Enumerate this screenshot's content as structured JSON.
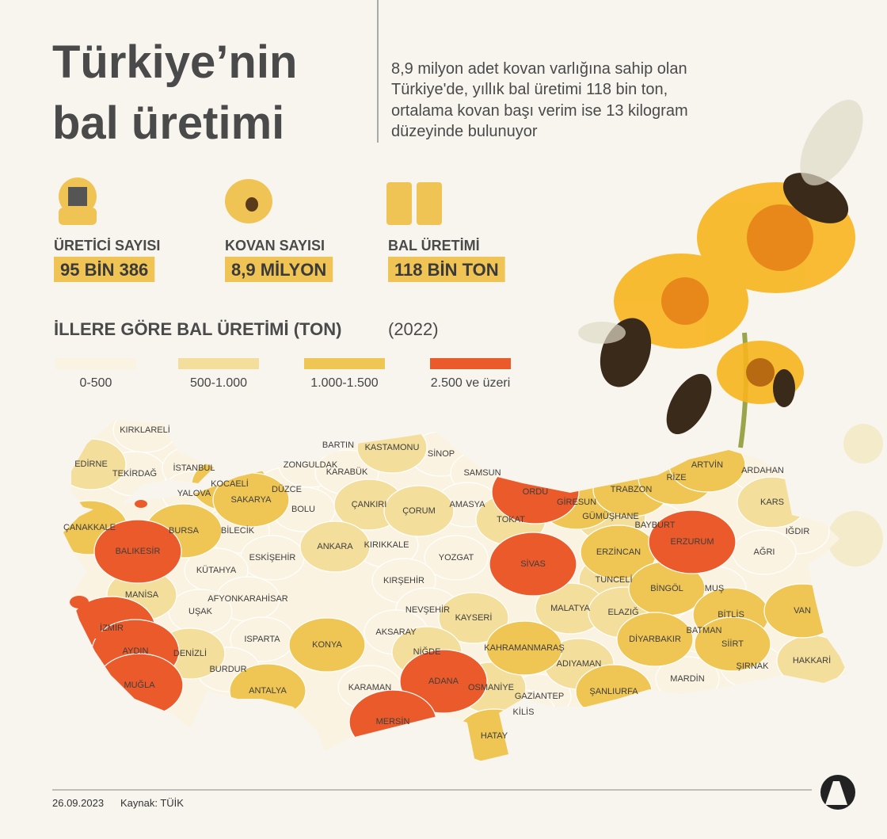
{
  "header": {
    "title_lines": [
      "Türkiye’nin",
      "bal üretimi"
    ],
    "description_lines": [
      "8,9 milyon adet kovan varlığına sahip olan",
      "Türkiye'de, yıllık bal üretimi 118 bin ton,",
      "ortalama kovan başı verim ise 13 kilogram",
      "düzeyinde bulunuyor"
    ]
  },
  "stats": [
    {
      "label": "ÜRETİCİ SAYISI",
      "value": "95 BİN 386"
    },
    {
      "label": "KOVAN SAYISI",
      "value": "8,9 MİLYON"
    },
    {
      "label": "BAL ÜRETİMİ",
      "value": "118 BİN TON"
    }
  ],
  "map": {
    "title": "İLLERE GÖRE BAL ÜRETİMİ (TON)",
    "year": "(2022)",
    "legend": [
      {
        "label": "0-500",
        "color": "#fbf3e1"
      },
      {
        "label": "500-1.000",
        "color": "#f4de9c"
      },
      {
        "label": "1.000-1.500",
        "color": "#efc553"
      },
      {
        "label": "2.500 ve üzeri",
        "color": "#ea5a2b"
      }
    ],
    "provinces": [
      {
        "name": "KIRKLARELİ",
        "level": 0
      },
      {
        "name": "EDİRNE",
        "level": 1
      },
      {
        "name": "TEKİRDAĞ",
        "level": 0
      },
      {
        "name": "İSTANBUL",
        "level": 0
      },
      {
        "name": "YALOVA",
        "level": 0
      },
      {
        "name": "KOCAELİ",
        "level": 2
      },
      {
        "name": "SAKARYA",
        "level": 2
      },
      {
        "name": "DÜZCE",
        "level": 0
      },
      {
        "name": "ZONGULDAK",
        "level": 0
      },
      {
        "name": "BARTIN",
        "level": 0
      },
      {
        "name": "KARABÜK",
        "level": 0
      },
      {
        "name": "KASTAMONU",
        "level": 1
      },
      {
        "name": "SİNOP",
        "level": 0
      },
      {
        "name": "SAMSUN",
        "level": 0
      },
      {
        "name": "ÇANAKKALE",
        "level": 2
      },
      {
        "name": "BURSA",
        "level": 2
      },
      {
        "name": "BİLECİK",
        "level": 0
      },
      {
        "name": "BOLU",
        "level": 0
      },
      {
        "name": "ÇANKIRI",
        "level": 1
      },
      {
        "name": "ÇORUM",
        "level": 1
      },
      {
        "name": "AMASYA",
        "level": 0
      },
      {
        "name": "TOKAT",
        "level": 1
      },
      {
        "name": "ORDU",
        "level": 3
      },
      {
        "name": "GİRESUN",
        "level": 2
      },
      {
        "name": "TRABZON",
        "level": 2
      },
      {
        "name": "RİZE",
        "level": 2
      },
      {
        "name": "ARTVİN",
        "level": 2
      },
      {
        "name": "ARDAHAN",
        "level": 0
      },
      {
        "name": "KARS",
        "level": 1
      },
      {
        "name": "GÜMÜŞHANE",
        "level": 1
      },
      {
        "name": "BAYBURT",
        "level": 0
      },
      {
        "name": "ERZURUM",
        "level": 3
      },
      {
        "name": "IĞDIR",
        "level": 0
      },
      {
        "name": "AĞRI",
        "level": 0
      },
      {
        "name": "BALIKESİR",
        "level": 3
      },
      {
        "name": "ESKİŞEHİR",
        "level": 0
      },
      {
        "name": "ANKARA",
        "level": 1
      },
      {
        "name": "KIRIKKALE",
        "level": 0
      },
      {
        "name": "YOZGAT",
        "level": 0
      },
      {
        "name": "SİVAS",
        "level": 3
      },
      {
        "name": "ERZİNCAN",
        "level": 2
      },
      {
        "name": "KÜTAHYA",
        "level": 0
      },
      {
        "name": "MANİSA",
        "level": 1
      },
      {
        "name": "KIRŞEHİR",
        "level": 0
      },
      {
        "name": "TUNCELİ",
        "level": 1
      },
      {
        "name": "BİNGÖL",
        "level": 2
      },
      {
        "name": "MUŞ",
        "level": 0
      },
      {
        "name": "AFYONKARAHİSAR",
        "level": 0
      },
      {
        "name": "UŞAK",
        "level": 0
      },
      {
        "name": "NEVŞEHİR",
        "level": 0
      },
      {
        "name": "KAYSERİ",
        "level": 1
      },
      {
        "name": "MALATYA",
        "level": 1
      },
      {
        "name": "ELAZIĞ",
        "level": 1
      },
      {
        "name": "BİTLİS",
        "level": 2
      },
      {
        "name": "VAN",
        "level": 2
      },
      {
        "name": "İZMİR",
        "level": 3
      },
      {
        "name": "ISPARTA",
        "level": 0
      },
      {
        "name": "AKSARAY",
        "level": 0
      },
      {
        "name": "DİYARBAKIR",
        "level": 2
      },
      {
        "name": "BATMAN",
        "level": 0
      },
      {
        "name": "SİİRT",
        "level": 2
      },
      {
        "name": "AYDIN",
        "level": 3
      },
      {
        "name": "DENİZLİ",
        "level": 1
      },
      {
        "name": "KONYA",
        "level": 2
      },
      {
        "name": "NİĞDE",
        "level": 1
      },
      {
        "name": "KAHRAMANMARAŞ",
        "level": 2
      },
      {
        "name": "ADIYAMAN",
        "level": 1
      },
      {
        "name": "HAKKARİ",
        "level": 1
      },
      {
        "name": "ŞIRNAK",
        "level": 0
      },
      {
        "name": "BURDUR",
        "level": 0
      },
      {
        "name": "MARDİN",
        "level": 0
      },
      {
        "name": "MUĞLA",
        "level": 3
      },
      {
        "name": "ANTALYA",
        "level": 2
      },
      {
        "name": "KARAMAN",
        "level": 0
      },
      {
        "name": "ADANA",
        "level": 3
      },
      {
        "name": "OSMANİYE",
        "level": 1
      },
      {
        "name": "ŞANLIURFA",
        "level": 2
      },
      {
        "name": "GAZİANTEP",
        "level": 0
      },
      {
        "name": "KİLİS",
        "level": 0
      },
      {
        "name": "MERSİN",
        "level": 3
      },
      {
        "name": "HATAY",
        "level": 2
      }
    ]
  },
  "footer": {
    "date": "26.09.2023",
    "source": "Kaynak: TÜİK"
  }
}
